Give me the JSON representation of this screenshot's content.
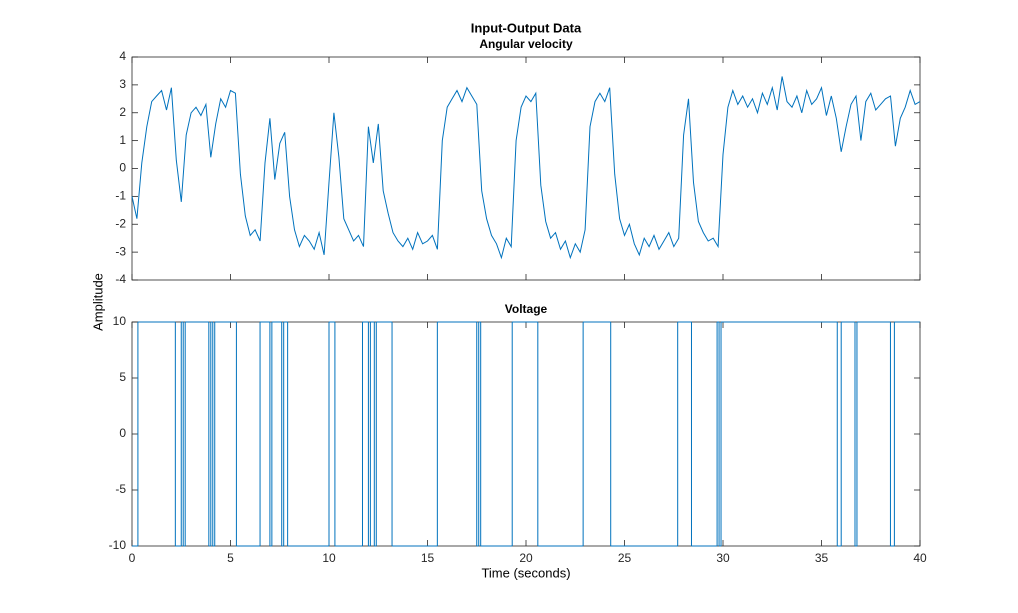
{
  "figure": {
    "title": "Input-Output Data",
    "xlabel": "Time (seconds)",
    "ylabel": "Amplitude"
  },
  "chart_data": [
    {
      "type": "line",
      "title": "Angular velocity",
      "xlim": [
        0,
        40
      ],
      "xticks": [
        0,
        5,
        10,
        15,
        20,
        25,
        30,
        35,
        40
      ],
      "xtick_labels": false,
      "ylim": [
        -4,
        4
      ],
      "yticks": [
        -4,
        -3,
        -2,
        -1,
        0,
        1,
        2,
        3,
        4
      ],
      "series": [
        {
          "color": "#0072bd",
          "x": [
            0,
            0.25,
            0.5,
            0.75,
            1,
            1.25,
            1.5,
            1.75,
            2,
            2.25,
            2.5,
            2.75,
            3,
            3.25,
            3.5,
            3.75,
            4,
            4.25,
            4.5,
            4.75,
            5,
            5.25,
            5.5,
            5.75,
            6,
            6.25,
            6.5,
            6.75,
            7,
            7.25,
            7.5,
            7.75,
            8,
            8.25,
            8.5,
            8.75,
            9,
            9.25,
            9.5,
            9.75,
            10,
            10.25,
            10.5,
            10.75,
            11,
            11.25,
            11.5,
            11.75,
            12,
            12.25,
            12.5,
            12.75,
            13,
            13.25,
            13.5,
            13.75,
            14,
            14.25,
            14.5,
            14.75,
            15,
            15.25,
            15.5,
            15.75,
            16,
            16.25,
            16.5,
            16.75,
            17,
            17.25,
            17.5,
            17.75,
            18,
            18.25,
            18.5,
            18.75,
            19,
            19.25,
            19.5,
            19.75,
            20,
            20.25,
            20.5,
            20.75,
            21,
            21.25,
            21.5,
            21.75,
            22,
            22.25,
            22.5,
            22.75,
            23,
            23.25,
            23.5,
            23.75,
            24,
            24.25,
            24.5,
            24.75,
            25,
            25.25,
            25.5,
            25.75,
            26,
            26.25,
            26.5,
            26.75,
            27,
            27.25,
            27.5,
            27.75,
            28,
            28.25,
            28.5,
            28.75,
            29,
            29.25,
            29.5,
            29.75,
            30,
            30.25,
            30.5,
            30.75,
            31,
            31.25,
            31.5,
            31.75,
            32,
            32.25,
            32.5,
            32.75,
            33,
            33.25,
            33.5,
            33.75,
            34,
            34.25,
            34.5,
            34.75,
            35,
            35.25,
            35.5,
            35.75,
            36,
            36.25,
            36.5,
            36.75,
            37,
            37.25,
            37.5,
            37.75,
            38,
            38.25,
            38.5,
            38.75,
            39,
            39.25,
            39.5,
            39.75,
            40
          ],
          "values": [
            -1.0,
            -1.8,
            0.2,
            1.5,
            2.4,
            2.6,
            2.8,
            2.1,
            2.9,
            0.3,
            -1.2,
            1.2,
            2.0,
            2.2,
            1.9,
            2.3,
            0.4,
            1.6,
            2.5,
            2.2,
            2.8,
            2.7,
            -0.2,
            -1.7,
            -2.4,
            -2.2,
            -2.6,
            0.2,
            1.8,
            -0.4,
            0.9,
            1.3,
            -1.0,
            -2.2,
            -2.8,
            -2.4,
            -2.6,
            -2.9,
            -2.3,
            -3.1,
            -0.5,
            2.0,
            0.4,
            -1.8,
            -2.2,
            -2.6,
            -2.4,
            -2.8,
            1.5,
            0.2,
            1.6,
            -0.8,
            -1.6,
            -2.3,
            -2.6,
            -2.8,
            -2.5,
            -2.9,
            -2.3,
            -2.7,
            -2.6,
            -2.4,
            -2.9,
            1.0,
            2.2,
            2.5,
            2.8,
            2.4,
            2.9,
            2.6,
            2.3,
            -0.8,
            -1.8,
            -2.4,
            -2.7,
            -3.2,
            -2.5,
            -2.8,
            1.0,
            2.2,
            2.6,
            2.4,
            2.7,
            -0.6,
            -1.9,
            -2.5,
            -2.3,
            -2.9,
            -2.6,
            -3.2,
            -2.7,
            -3.0,
            -2.2,
            1.5,
            2.4,
            2.7,
            2.4,
            2.9,
            -0.2,
            -1.8,
            -2.4,
            -2.0,
            -2.7,
            -3.1,
            -2.5,
            -2.8,
            -2.4,
            -2.9,
            -2.6,
            -2.3,
            -2.8,
            -2.5,
            1.2,
            2.5,
            -0.5,
            -1.9,
            -2.3,
            -2.6,
            -2.5,
            -2.8,
            0.5,
            2.2,
            2.8,
            2.3,
            2.6,
            2.2,
            2.5,
            2.0,
            2.7,
            2.3,
            2.9,
            2.1,
            3.3,
            2.4,
            2.2,
            2.6,
            2.0,
            2.8,
            2.3,
            2.5,
            2.9,
            1.9,
            2.6,
            1.8,
            0.6,
            1.5,
            2.3,
            2.6,
            1.0,
            2.4,
            2.7,
            2.1,
            2.3,
            2.5,
            2.6,
            0.8,
            1.8,
            2.2,
            2.8,
            2.3,
            2.4
          ]
        }
      ]
    },
    {
      "type": "stairs",
      "title": "Voltage",
      "xlim": [
        0,
        40
      ],
      "xticks": [
        0,
        5,
        10,
        15,
        20,
        25,
        30,
        35,
        40
      ],
      "ylim": [
        -10,
        10
      ],
      "yticks": [
        -10,
        -5,
        0,
        5,
        10
      ],
      "series": [
        {
          "color": "#0072bd",
          "x": [
            0,
            0.3,
            2.2,
            2.5,
            2.6,
            2.7,
            3.9,
            4.0,
            4.1,
            4.2,
            5.3,
            6.5,
            7.0,
            7.1,
            7.6,
            7.7,
            7.9,
            10.0,
            10.3,
            11.7,
            12.0,
            12.1,
            12.3,
            12.4,
            13.2,
            15.5,
            17.5,
            17.6,
            17.7,
            19.3,
            20.6,
            22.9,
            24.3,
            27.7,
            28.4,
            29.7,
            29.8,
            29.9,
            35.8,
            36.0,
            36.7,
            36.8,
            38.5,
            38.7
          ],
          "values": [
            -10,
            10,
            -10,
            10,
            -10,
            10,
            -10,
            10,
            -10,
            10,
            -10,
            10,
            -10,
            10,
            -10,
            10,
            -10,
            10,
            -10,
            10,
            -10,
            10,
            -10,
            10,
            -10,
            10,
            -10,
            10,
            -10,
            10,
            -10,
            10,
            -10,
            10,
            -10,
            10,
            -10,
            10,
            -10,
            10,
            -10,
            10,
            -10,
            10
          ]
        }
      ]
    }
  ]
}
